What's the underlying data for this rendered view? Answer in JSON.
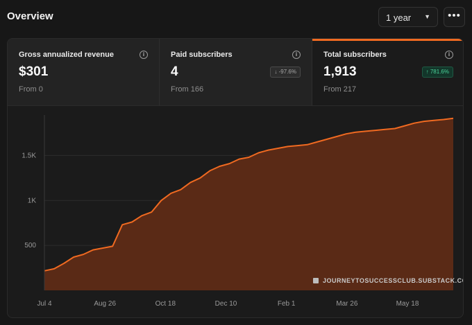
{
  "header": {
    "title": "Overview",
    "range_value": "1 year",
    "more_label": "•••"
  },
  "stats": [
    {
      "label": "Gross annualized revenue",
      "value": "$301",
      "from": "From 0",
      "change": ""
    },
    {
      "label": "Paid subscribers",
      "value": "4",
      "from": "From 166",
      "change": "-97.6%",
      "direction": "down"
    },
    {
      "label": "Total subscribers",
      "value": "1,913",
      "from": "From 217",
      "change": "781.6%",
      "direction": "up"
    }
  ],
  "watermark": "JOURNEYTOSUCCESSCLUB.SUBSTACK.COM",
  "colors": {
    "accent": "#f06a21",
    "fill": "#5a2a16",
    "background": "#1b1b1b",
    "up": "#4ad39a"
  },
  "chart_data": {
    "type": "area",
    "title": "",
    "xlabel": "",
    "ylabel": "",
    "x_ticks": [
      "Jul 4",
      "Aug 26",
      "Oct 18",
      "Dec 10",
      "Feb 1",
      "Mar 26",
      "May 18"
    ],
    "y_ticks": [
      {
        "value": 500,
        "label": "500"
      },
      {
        "value": 1000,
        "label": "1K"
      },
      {
        "value": 1500,
        "label": "1.5K"
      }
    ],
    "ylim": [
      0,
      1950
    ],
    "grid": true,
    "series": [
      {
        "values": [
          217,
          240,
          300,
          370,
          400,
          450,
          470,
          490,
          730,
          760,
          830,
          870,
          1000,
          1080,
          1120,
          1200,
          1250,
          1330,
          1380,
          1410,
          1460,
          1480,
          1530,
          1560,
          1580,
          1600,
          1610,
          1620,
          1650,
          1680,
          1710,
          1740,
          1760,
          1770,
          1780,
          1790,
          1800,
          1830,
          1860,
          1880,
          1890,
          1900,
          1913
        ]
      }
    ]
  }
}
